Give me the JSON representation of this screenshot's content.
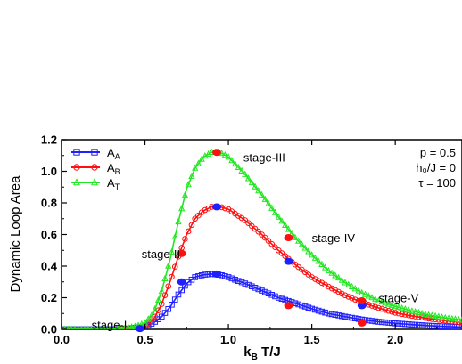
{
  "chart_data": {
    "type": "scatter",
    "xlabel": "k_B T/J",
    "ylabel": "Dynamic Loop Area",
    "xlim": [
      0.0,
      2.4
    ],
    "ylim": [
      0.0,
      1.2
    ],
    "x_ticks": [
      "0.0",
      "0.5",
      "1.0",
      "1.5",
      "2.0"
    ],
    "x_tick_values": [
      0.0,
      0.5,
      1.0,
      1.5,
      2.0
    ],
    "y_ticks": [
      "0.0",
      "0.2",
      "0.4",
      "0.6",
      "0.8",
      "1.0",
      "1.2"
    ],
    "y_tick_values": [
      0.0,
      0.2,
      0.4,
      0.6,
      0.8,
      1.0,
      1.2
    ],
    "grid": false,
    "legend_position": "top-left",
    "parameters": [
      "p = 0.5",
      "h₀/J = 0",
      "τ = 100"
    ],
    "series": [
      {
        "name": "A_A",
        "label_main": "A",
        "label_sub": "A",
        "color": "#1f1fff",
        "marker": "square",
        "x": [
          0.0,
          0.1,
          0.2,
          0.3,
          0.4,
          0.45,
          0.5,
          0.55,
          0.6,
          0.65,
          0.7,
          0.75,
          0.8,
          0.85,
          0.9,
          0.95,
          1.0,
          1.1,
          1.2,
          1.3,
          1.4,
          1.5,
          1.6,
          1.7,
          1.8,
          1.9,
          2.0,
          2.1,
          2.2,
          2.3,
          2.4
        ],
        "y": [
          0.0,
          0.0,
          0.0,
          0.0,
          0.005,
          0.01,
          0.02,
          0.04,
          0.08,
          0.14,
          0.22,
          0.29,
          0.33,
          0.345,
          0.35,
          0.345,
          0.33,
          0.29,
          0.245,
          0.2,
          0.165,
          0.13,
          0.1,
          0.08,
          0.062,
          0.048,
          0.038,
          0.03,
          0.023,
          0.018,
          0.014
        ]
      },
      {
        "name": "A_B",
        "label_main": "A",
        "label_sub": "B",
        "color": "#ff1010",
        "marker": "circle",
        "x": [
          0.0,
          0.1,
          0.2,
          0.3,
          0.4,
          0.45,
          0.5,
          0.55,
          0.6,
          0.65,
          0.7,
          0.75,
          0.8,
          0.85,
          0.9,
          0.95,
          1.0,
          1.1,
          1.2,
          1.3,
          1.4,
          1.5,
          1.6,
          1.7,
          1.8,
          1.9,
          2.0,
          2.1,
          2.2,
          2.3,
          2.4
        ],
        "y": [
          0.0,
          0.0,
          0.0,
          0.0,
          0.005,
          0.01,
          0.02,
          0.06,
          0.16,
          0.3,
          0.46,
          0.6,
          0.7,
          0.75,
          0.775,
          0.775,
          0.76,
          0.69,
          0.6,
          0.5,
          0.41,
          0.33,
          0.27,
          0.215,
          0.17,
          0.135,
          0.105,
          0.085,
          0.068,
          0.055,
          0.044
        ]
      },
      {
        "name": "A_T",
        "label_main": "A",
        "label_sub": "T",
        "color": "#22e622",
        "marker": "triangle",
        "x": [
          0.0,
          0.1,
          0.2,
          0.3,
          0.4,
          0.45,
          0.5,
          0.55,
          0.6,
          0.65,
          0.7,
          0.75,
          0.8,
          0.85,
          0.9,
          0.95,
          1.0,
          1.1,
          1.2,
          1.3,
          1.4,
          1.5,
          1.6,
          1.7,
          1.8,
          1.9,
          2.0,
          2.1,
          2.2,
          2.3,
          2.4
        ],
        "y": [
          0.0,
          0.0,
          0.0,
          0.0,
          0.01,
          0.02,
          0.04,
          0.1,
          0.24,
          0.44,
          0.68,
          0.89,
          1.02,
          1.09,
          1.12,
          1.12,
          1.09,
          0.98,
          0.85,
          0.71,
          0.58,
          0.47,
          0.37,
          0.295,
          0.23,
          0.18,
          0.145,
          0.115,
          0.09,
          0.072,
          0.058
        ]
      }
    ],
    "stage_markers": [
      {
        "series": "A_A",
        "x": 0.47,
        "y": 0.005,
        "color": "#1f1fff"
      },
      {
        "series": "A_A",
        "x": 0.72,
        "y": 0.3,
        "color": "#1f1fff"
      },
      {
        "series": "A_A",
        "x": 0.93,
        "y": 0.35,
        "color": "#1f1fff"
      },
      {
        "series": "A_A",
        "x": 1.36,
        "y": 0.15,
        "color": "#ff1010"
      },
      {
        "series": "A_A",
        "x": 1.8,
        "y": 0.04,
        "color": "#ff1010"
      },
      {
        "series": "A_B",
        "x": 0.72,
        "y": 0.48,
        "color": "#ff1010"
      },
      {
        "series": "A_B",
        "x": 0.93,
        "y": 0.775,
        "color": "#1f1fff"
      },
      {
        "series": "A_B",
        "x": 1.36,
        "y": 0.43,
        "color": "#1f1fff"
      },
      {
        "series": "A_B",
        "x": 1.8,
        "y": 0.15,
        "color": "#1f1fff"
      },
      {
        "series": "A_T",
        "x": 0.93,
        "y": 1.12,
        "color": "#ff1010"
      },
      {
        "series": "A_T",
        "x": 1.36,
        "y": 0.58,
        "color": "#ff1010"
      },
      {
        "series": "A_T",
        "x": 1.8,
        "y": 0.18,
        "color": "#ff1010"
      }
    ],
    "annotations": [
      {
        "text": "stage-I",
        "x": 0.18,
        "y": 0.03
      },
      {
        "text": "stage-II",
        "x": 0.48,
        "y": 0.48
      },
      {
        "text": "stage-III",
        "x": 1.09,
        "y": 1.09
      },
      {
        "text": "stage-IV",
        "x": 1.5,
        "y": 0.58
      },
      {
        "text": "stage-V",
        "x": 1.9,
        "y": 0.2
      }
    ]
  }
}
